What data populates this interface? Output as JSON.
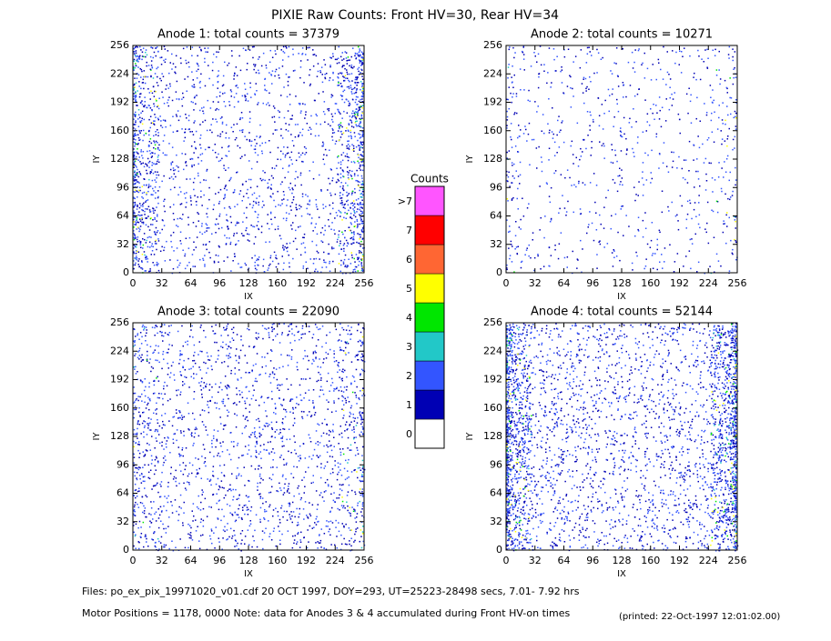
{
  "header": {
    "title": "PIXIE Raw Counts:  Front HV=30, Rear HV=34"
  },
  "panels": [
    {
      "title": "Anode 1: total counts = 37379",
      "xlabel": "IX",
      "ylabel": "IY",
      "xlim": [
        0,
        256
      ],
      "ylim": [
        0,
        256
      ],
      "xticks": [
        0,
        32,
        64,
        96,
        128,
        160,
        192,
        224,
        256
      ],
      "yticks": [
        0,
        32,
        64,
        96,
        128,
        160,
        192,
        224,
        256
      ]
    },
    {
      "title": "Anode 2: total counts = 10271",
      "xlabel": "IX",
      "ylabel": "IY",
      "xlim": [
        0,
        256
      ],
      "ylim": [
        0,
        256
      ],
      "xticks": [
        0,
        32,
        64,
        96,
        128,
        160,
        192,
        224,
        256
      ],
      "yticks": [
        0,
        32,
        64,
        96,
        128,
        160,
        192,
        224,
        256
      ]
    },
    {
      "title": "Anode 3: total counts = 22090",
      "xlabel": "IX",
      "ylabel": "IY",
      "xlim": [
        0,
        256
      ],
      "ylim": [
        0,
        256
      ],
      "xticks": [
        0,
        32,
        64,
        96,
        128,
        160,
        192,
        224,
        256
      ],
      "yticks": [
        0,
        32,
        64,
        96,
        128,
        160,
        192,
        224,
        256
      ]
    },
    {
      "title": "Anode 4: total counts = 52144",
      "xlabel": "IX",
      "ylabel": "IY",
      "xlim": [
        0,
        256
      ],
      "ylim": [
        0,
        256
      ],
      "xticks": [
        0,
        32,
        64,
        96,
        128,
        160,
        192,
        224,
        256
      ],
      "yticks": [
        0,
        32,
        64,
        96,
        128,
        160,
        192,
        224,
        256
      ]
    }
  ],
  "colorbar": {
    "title": "Counts",
    "levels": [
      {
        "label": "0",
        "color": "#ffffff"
      },
      {
        "label": "1",
        "color": "#0000b4"
      },
      {
        "label": "2",
        "color": "#3355ff"
      },
      {
        "label": "3",
        "color": "#22c8c8"
      },
      {
        "label": "4",
        "color": "#00e600"
      },
      {
        "label": "5",
        "color": "#ffff00"
      },
      {
        "label": "6",
        "color": "#ff6633"
      },
      {
        "label": "7",
        "color": "#ff0000"
      },
      {
        "label": ">7",
        "color": "#ff55ff"
      }
    ]
  },
  "footer": {
    "line1": "Files: po_ex_pix_19971020_v01.cdf    20 OCT 1997, DOY=293, UT=25223-28498 secs,  7.01- 7.92 hrs",
    "line2": "Motor Positions = 1178, 0000   Note: data for Anodes 3 & 4 accumulated during Front HV-on times",
    "printed": "(printed: 22-Oct-1997 12:01:02.00)"
  }
}
